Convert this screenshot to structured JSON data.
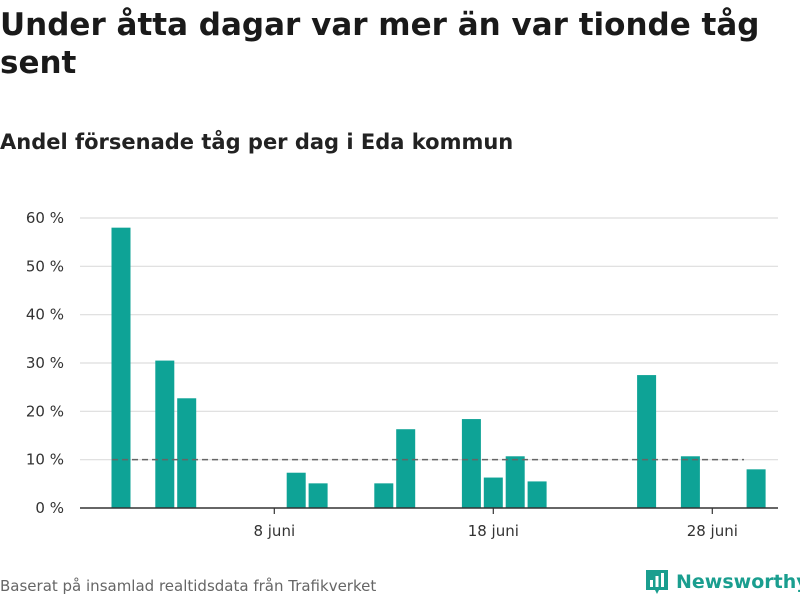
{
  "title": "Under åtta dagar var mer än var tionde tåg sent",
  "subtitle": "Andel försenade tåg per dag i Eda kommun",
  "source": "Baserat på insamlad realtidsdata från Trafikverket",
  "brand": {
    "name": "Newsworthy",
    "icon": "bar-chart-logo-icon"
  },
  "colors": {
    "bar": "#0ea396",
    "grid": "#dddddd",
    "reference": "#666666",
    "axis": "#333333",
    "brand": "#1a9e8f"
  },
  "chart_data": {
    "type": "bar",
    "x_start_day": 1,
    "x": [
      1,
      2,
      3,
      4,
      5,
      6,
      7,
      8,
      9,
      10,
      11,
      12,
      13,
      14,
      15,
      16,
      17,
      18,
      19,
      20,
      21,
      22,
      23,
      24,
      25,
      26,
      27,
      28,
      29,
      30
    ],
    "values": [
      58,
      0,
      30.5,
      22.7,
      0,
      0,
      0,
      0,
      7.3,
      5.1,
      0,
      0,
      5.1,
      16.3,
      0,
      0,
      18.4,
      6.3,
      10.7,
      5.5,
      0,
      0,
      0,
      0,
      27.5,
      0,
      10.7,
      0,
      0,
      8.0
    ],
    "ylim": [
      0,
      60
    ],
    "yticks": [
      0,
      10,
      20,
      30,
      40,
      50,
      60
    ],
    "ytick_labels": [
      "0 %",
      "10 %",
      "20 %",
      "30 %",
      "40 %",
      "50 %",
      "60 %"
    ],
    "xticks": [
      8,
      18,
      28
    ],
    "xtick_labels": [
      "8 juni",
      "18 juni",
      "28 juni"
    ],
    "reference_line": 10,
    "grid": true,
    "legend": "none"
  }
}
